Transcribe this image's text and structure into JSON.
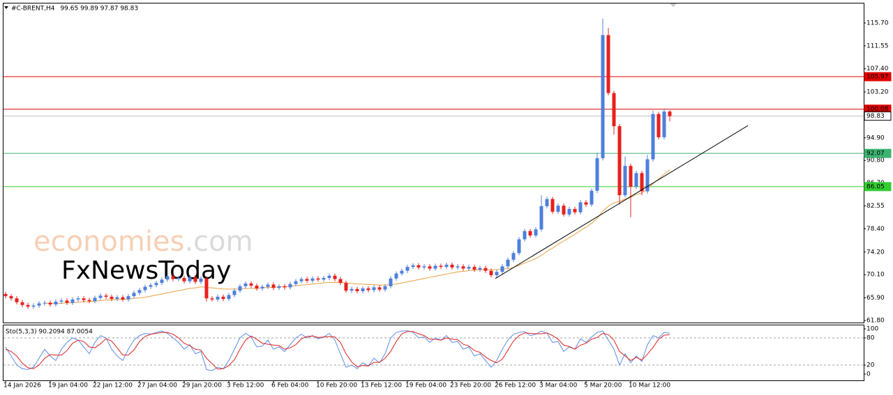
{
  "chart_data": [
    {
      "type": "candlestick",
      "title": "#C-BRENT,H4",
      "ohlc_label": "99.65 99.89 97.87 98.83",
      "watermark": {
        "brand": "economies",
        "suffix": ".com",
        "second": "FxNewsToday"
      },
      "up_color": "#4f7fdc",
      "down_color": "#e8201c",
      "categories": [
        "14 Jan 2026",
        null,
        null,
        null,
        null,
        null,
        null,
        null,
        "19 Jan 04:00",
        null,
        null,
        null,
        null,
        null,
        null,
        null,
        "22 Jan 12:00",
        null,
        null,
        null,
        null,
        null,
        null,
        null,
        "27 Jan 04:00",
        null,
        null,
        null,
        null,
        null,
        null,
        null,
        "29 Jan 20:00",
        null,
        null,
        null,
        null,
        null,
        null,
        null,
        "3 Feb 12:00",
        null,
        null,
        null,
        null,
        null,
        null,
        null,
        "6 Feb 04:00",
        null,
        null,
        null,
        null,
        null,
        null,
        null,
        "10 Feb 20:00",
        null,
        null,
        null,
        null,
        null,
        null,
        null,
        "13 Feb 12:00",
        null,
        null,
        null,
        null,
        null,
        null,
        null,
        "19 Feb 04:00",
        null,
        null,
        null,
        null,
        null,
        null,
        null,
        "23 Feb 20:00",
        null,
        null,
        null,
        null,
        null,
        null,
        null,
        "26 Feb 12:00",
        null,
        null,
        null,
        null,
        null,
        null,
        null,
        "3 Mar 04:00",
        null,
        null,
        null,
        null,
        null,
        null,
        null,
        "5 Mar 20:00",
        null,
        null,
        null,
        null,
        null,
        null,
        null,
        "10 Mar 12:00",
        null,
        null,
        null,
        null,
        null,
        null,
        null
      ],
      "open": [
        66.6,
        66.2,
        65.8,
        65.1,
        64.6,
        64.3,
        64.5,
        64.9,
        65.0,
        64.7,
        65.2,
        65.4,
        65.0,
        65.6,
        65.8,
        65.5,
        65.3,
        65.9,
        66.3,
        66.1,
        65.7,
        66.0,
        65.6,
        66.2,
        66.8,
        67.3,
        67.9,
        68.2,
        68.6,
        69.2,
        69.8,
        69.3,
        69.5,
        68.9,
        69.6,
        68.8,
        69.4,
        65.8,
        65.6,
        66.1,
        65.7,
        66.4,
        67.2,
        68.0,
        68.5,
        68.1,
        67.6,
        67.9,
        68.3,
        67.7,
        68.0,
        67.8,
        68.4,
        68.9,
        69.3,
        69.0,
        69.4,
        69.2,
        69.5,
        69.9,
        69.3,
        68.6,
        67.2,
        67.5,
        67.1,
        67.6,
        67.3,
        67.8,
        67.4,
        68.0,
        69.4,
        70.3,
        70.8,
        71.5,
        71.8,
        71.4,
        71.6,
        71.2,
        71.7,
        71.5,
        71.9,
        71.4,
        71.6,
        71.2,
        71.5,
        71.0,
        71.3,
        70.8,
        70.0,
        70.6,
        71.6,
        72.8,
        74.0,
        76.5,
        78.0,
        77.2,
        78.3,
        82.5,
        83.8,
        81.5,
        82.6,
        81.0,
        82.0,
        81.4,
        83.2,
        82.8,
        85.3,
        91.2,
        113.5,
        103.0,
        97.0,
        84.5,
        89.8,
        86.0,
        88.5,
        85.2,
        91.0,
        99.2,
        95.0,
        99.65
      ],
      "high": [
        67.0,
        66.6,
        66.2,
        65.5,
        65.0,
        64.9,
        65.3,
        65.4,
        65.4,
        65.6,
        65.8,
        65.8,
        66.0,
        66.2,
        66.2,
        65.9,
        66.3,
        66.7,
        66.7,
        66.5,
        66.4,
        66.4,
        66.6,
        67.2,
        67.7,
        68.3,
        68.6,
        69.0,
        69.6,
        70.2,
        70.2,
        69.9,
        69.9,
        70.0,
        70.0,
        69.8,
        69.8,
        66.2,
        66.5,
        66.5,
        66.8,
        67.6,
        68.4,
        68.9,
        68.9,
        68.5,
        68.3,
        68.7,
        68.7,
        68.4,
        68.4,
        68.8,
        69.3,
        69.7,
        69.7,
        69.8,
        69.8,
        69.9,
        70.3,
        70.3,
        69.7,
        69.0,
        67.9,
        67.9,
        68.0,
        68.0,
        68.2,
        68.2,
        68.4,
        69.8,
        70.7,
        71.2,
        71.9,
        72.2,
        72.2,
        72.0,
        72.0,
        72.1,
        72.1,
        72.3,
        72.3,
        72.0,
        72.0,
        71.9,
        71.9,
        71.7,
        71.7,
        71.2,
        71.0,
        72.0,
        73.2,
        74.4,
        76.9,
        78.4,
        78.4,
        78.7,
        84.5,
        84.2,
        84.2,
        83.0,
        83.0,
        82.4,
        82.4,
        83.6,
        83.6,
        85.7,
        92.2,
        116.5,
        114.8,
        103.4,
        97.4,
        91.5,
        90.2,
        88.9,
        88.9,
        91.8,
        99.8,
        99.6,
        100.2,
        99.89
      ],
      "low": [
        65.8,
        65.4,
        64.7,
        64.2,
        63.9,
        63.9,
        64.1,
        64.5,
        64.3,
        64.3,
        64.8,
        64.6,
        64.6,
        65.2,
        65.1,
        64.9,
        64.9,
        65.5,
        65.7,
        65.3,
        65.3,
        65.2,
        65.2,
        65.8,
        66.4,
        66.9,
        67.5,
        67.8,
        68.2,
        68.8,
        68.9,
        68.9,
        68.5,
        68.5,
        68.4,
        68.4,
        65.2,
        65.2,
        65.2,
        65.3,
        65.3,
        66.0,
        66.8,
        67.6,
        67.7,
        67.2,
        67.2,
        67.5,
        67.3,
        67.3,
        67.4,
        67.4,
        68.0,
        68.5,
        68.6,
        68.6,
        68.8,
        68.8,
        69.1,
        68.9,
        68.2,
        66.8,
        66.8,
        66.7,
        66.7,
        66.9,
        66.9,
        67.0,
        67.0,
        67.6,
        69.0,
        69.9,
        70.4,
        71.1,
        71.0,
        71.0,
        70.8,
        70.8,
        71.1,
        71.1,
        71.0,
        71.0,
        70.8,
        70.8,
        70.6,
        70.6,
        70.4,
        69.6,
        69.6,
        70.2,
        71.2,
        72.4,
        73.6,
        76.1,
        76.8,
        76.8,
        77.9,
        82.1,
        81.1,
        81.1,
        80.6,
        80.6,
        81.0,
        81.0,
        82.4,
        82.4,
        84.9,
        90.8,
        102.6,
        95.5,
        82.8,
        84.1,
        80.5,
        85.6,
        84.5,
        84.8,
        90.6,
        94.6,
        94.6,
        97.87
      ],
      "close": [
        66.2,
        65.8,
        65.1,
        64.6,
        64.3,
        64.5,
        64.9,
        65.0,
        64.7,
        65.2,
        65.4,
        65.0,
        65.6,
        65.8,
        65.5,
        65.3,
        65.9,
        66.3,
        66.1,
        65.7,
        66.0,
        65.6,
        66.2,
        66.8,
        67.3,
        67.9,
        68.2,
        68.6,
        69.2,
        69.8,
        69.3,
        69.5,
        68.9,
        69.6,
        68.8,
        69.4,
        65.8,
        65.6,
        66.1,
        65.7,
        66.4,
        67.2,
        68.0,
        68.5,
        68.1,
        67.6,
        67.9,
        68.3,
        67.7,
        68.0,
        67.8,
        68.4,
        68.9,
        69.3,
        69.0,
        69.4,
        69.2,
        69.5,
        69.9,
        69.3,
        68.6,
        67.2,
        67.5,
        67.1,
        67.6,
        67.3,
        67.8,
        67.4,
        68.0,
        69.4,
        70.3,
        70.8,
        71.5,
        71.8,
        71.4,
        71.6,
        71.2,
        71.7,
        71.5,
        71.9,
        71.4,
        71.6,
        71.2,
        71.5,
        71.0,
        71.3,
        70.8,
        70.0,
        70.6,
        71.6,
        72.8,
        74.0,
        76.5,
        78.0,
        77.2,
        78.3,
        82.5,
        83.8,
        81.5,
        82.6,
        81.0,
        82.0,
        81.4,
        83.2,
        82.8,
        85.3,
        91.2,
        113.5,
        103.0,
        97.0,
        84.5,
        89.8,
        86.0,
        88.5,
        85.2,
        91.0,
        99.2,
        95.0,
        99.65,
        98.83
      ],
      "ma": {
        "color": "#e8a040",
        "values": [
          null,
          null,
          null,
          null,
          null,
          null,
          null,
          64.9,
          64.9,
          64.9,
          64.9,
          65.0,
          65.0,
          65.1,
          65.2,
          65.2,
          65.3,
          65.4,
          65.5,
          65.5,
          65.6,
          65.6,
          65.7,
          65.8,
          65.9,
          66.0,
          66.2,
          66.4,
          66.6,
          66.8,
          67.0,
          67.2,
          67.4,
          67.6,
          67.7,
          67.9,
          67.8,
          67.7,
          67.6,
          67.5,
          67.5,
          67.5,
          67.5,
          67.6,
          67.6,
          67.6,
          67.7,
          67.8,
          67.8,
          67.9,
          67.9,
          68.0,
          68.1,
          68.2,
          68.3,
          68.4,
          68.5,
          68.6,
          68.7,
          68.7,
          68.7,
          68.6,
          68.5,
          68.4,
          68.4,
          68.3,
          68.3,
          68.2,
          68.2,
          68.3,
          68.4,
          68.6,
          68.8,
          69.0,
          69.2,
          69.4,
          69.6,
          69.8,
          70.0,
          70.2,
          70.4,
          70.6,
          70.7,
          70.8,
          70.9,
          71.0,
          71.0,
          71.0,
          71.0,
          71.1,
          71.2,
          71.4,
          71.8,
          72.2,
          72.6,
          73.0,
          73.6,
          74.3,
          74.9,
          75.6,
          76.2,
          76.8,
          77.4,
          78.1,
          78.7,
          79.4,
          80.3,
          81.6,
          82.5,
          83.1,
          83.4,
          83.8,
          84.1,
          84.6,
          84.9,
          85.6,
          86.6,
          87.4,
          88.3,
          89.1
        ]
      },
      "trendline": {
        "color": "#000000",
        "start": [
          87.75,
          69.4
        ],
        "end": [
          133,
          97.1
        ]
      },
      "levels": [
        {
          "value": 105.97,
          "color": "#e00000",
          "box_color": "#e00000",
          "text_color": "#ffffff"
        },
        {
          "value": 100.08,
          "color": "#e00000",
          "box_color": "#e00000",
          "text_color": "#ffffff"
        },
        {
          "value": 98.83,
          "color": "#c0c0c0",
          "box_color": "#ffffff",
          "text_color": "#000000"
        },
        {
          "value": 92.07,
          "color": "#3cb371",
          "box_color": "#3cb371",
          "text_color": "#ffffff"
        },
        {
          "value": 86.05,
          "color": "#32cd32",
          "box_color": "#32cd32",
          "text_color": "#ffffff"
        }
      ],
      "ylim": [
        61.42,
        119.23
      ],
      "yticks": [
        {
          "value": 115.7,
          "label": "115.70"
        },
        111.55,
        {
          "value": 107.4,
          "label": "107.40"
        },
        {
          "value": 103.2,
          "label": "103.20"
        },
        {
          "value": 94.9,
          "label": "94.90"
        },
        {
          "value": 90.8,
          "label": "90.80"
        },
        {
          "value": 86.7,
          "label": "86.70"
        },
        82.55,
        {
          "value": 78.4,
          "label": "78.40"
        },
        {
          "value": 74.2,
          "label": "74.20"
        },
        {
          "value": 70.1,
          "label": "70.10"
        },
        {
          "value": 65.9,
          "label": "65.90"
        },
        {
          "value": 61.8,
          "label": "61.80"
        }
      ]
    },
    {
      "type": "line",
      "label": "Sto(5,3,3) 90.2094 87.0054",
      "series": [
        {
          "color": "#5b8de6",
          "values": [
            60,
            40,
            20,
            12,
            10,
            15,
            35,
            55,
            40,
            30,
            55,
            70,
            80,
            75,
            60,
            45,
            70,
            85,
            80,
            55,
            40,
            30,
            55,
            75,
            85,
            90,
            88,
            92,
            95,
            90,
            80,
            70,
            55,
            65,
            45,
            50,
            10,
            8,
            15,
            12,
            30,
            55,
            80,
            90,
            82,
            60,
            62,
            75,
            55,
            60,
            50,
            65,
            80,
            88,
            80,
            85,
            78,
            82,
            90,
            75,
            45,
            15,
            20,
            12,
            25,
            18,
            35,
            25,
            45,
            80,
            92,
            95,
            96,
            92,
            80,
            82,
            70,
            80,
            75,
            85,
            70,
            72,
            55,
            60,
            40,
            45,
            30,
            15,
            30,
            55,
            75,
            88,
            92,
            94,
            85,
            88,
            95,
            90,
            70,
            72,
            50,
            60,
            55,
            78,
            70,
            82,
            92,
            95,
            75,
            55,
            20,
            45,
            25,
            40,
            28,
            65,
            85,
            80,
            92,
            90.2
          ]
        },
        {
          "color": "#e02020",
          "values": [
            55,
            50,
            40,
            24,
            14,
            12,
            20,
            35,
            43,
            42,
            42,
            52,
            68,
            75,
            72,
            60,
            58,
            67,
            78,
            73,
            58,
            42,
            42,
            53,
            72,
            83,
            88,
            90,
            92,
            92,
            88,
            80,
            68,
            63,
            55,
            53,
            35,
            23,
            11,
            12,
            19,
            32,
            55,
            75,
            84,
            77,
            68,
            66,
            64,
            63,
            55,
            58,
            65,
            78,
            83,
            84,
            81,
            82,
            83,
            82,
            70,
            45,
            27,
            16,
            19,
            18,
            26,
            26,
            35,
            50,
            72,
            89,
            94,
            94,
            89,
            85,
            77,
            77,
            75,
            80,
            77,
            76,
            66,
            62,
            52,
            48,
            38,
            30,
            25,
            33,
            53,
            73,
            85,
            91,
            90,
            89,
            89,
            91,
            85,
            77,
            64,
            61,
            55,
            64,
            68,
            77,
            81,
            90,
            87,
            75,
            50,
            40,
            30,
            37,
            31,
            44,
            59,
            77,
            86,
            87.0
          ]
        }
      ],
      "levels": [
        20,
        80
      ],
      "ylim": [
        -13.8,
        109.2
      ],
      "yticks": [
        0,
        20,
        80,
        100
      ]
    }
  ]
}
